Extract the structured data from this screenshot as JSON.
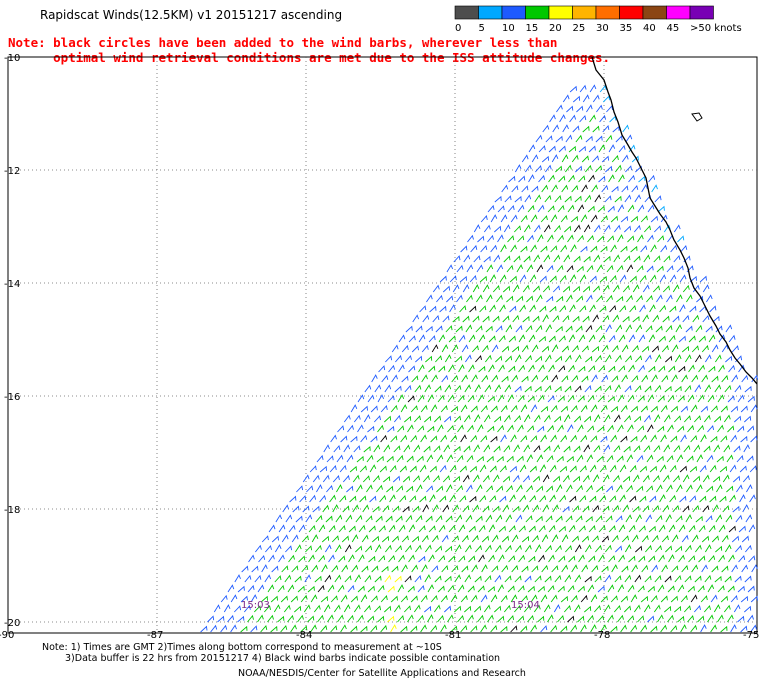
{
  "title": "Rapidscat Winds(12.5KM) v1 20151217 ascending",
  "note": {
    "line1": "Note: black circles have been added to the wind barbs, wherever less than",
    "line2": "      optimal wind retrieval conditions are met due to the ISS attitude changes."
  },
  "legend": {
    "segments": [
      {
        "label": "0",
        "color": "#4d4d4d"
      },
      {
        "label": "5",
        "color": "#00a8ff"
      },
      {
        "label": "10",
        "color": "#1e5aff"
      },
      {
        "label": "15",
        "color": "#00c800"
      },
      {
        "label": "20",
        "color": "#ffff00"
      },
      {
        "label": "25",
        "color": "#ffb400"
      },
      {
        "label": "30",
        "color": "#ff6e00"
      },
      {
        "label": "35",
        "color": "#ff0000"
      },
      {
        "label": "40",
        "color": "#8b4513"
      },
      {
        "label": "45",
        "color": "#ff00ff"
      },
      {
        "label": ">50 knots",
        "color": "#7800b4"
      }
    ]
  },
  "map": {
    "lat_labels": [
      "-10",
      "-12",
      "-14",
      "-16",
      "-18",
      "-20"
    ],
    "lon_labels": [
      "-90",
      "-87",
      "-84",
      "-81",
      "-78",
      "-75"
    ],
    "time_labels": [
      "15:03",
      "15:04"
    ],
    "barb_colors": {
      "weak": "#1e5aff",
      "moderate": "#00c800",
      "light": "#00a8ff",
      "flagged": "#000000",
      "strong": "#ffff00"
    }
  },
  "footer": {
    "line1": "Note: 1) Times are GMT 2)Times along bottom correspond to measurement at ~10S",
    "line2": "3)Data buffer is 22 hrs from 20151217 4) Black wind barbs indicate possible contamination",
    "line3": "NOAA/NESDIS/Center for Satellite Applications and Research"
  }
}
